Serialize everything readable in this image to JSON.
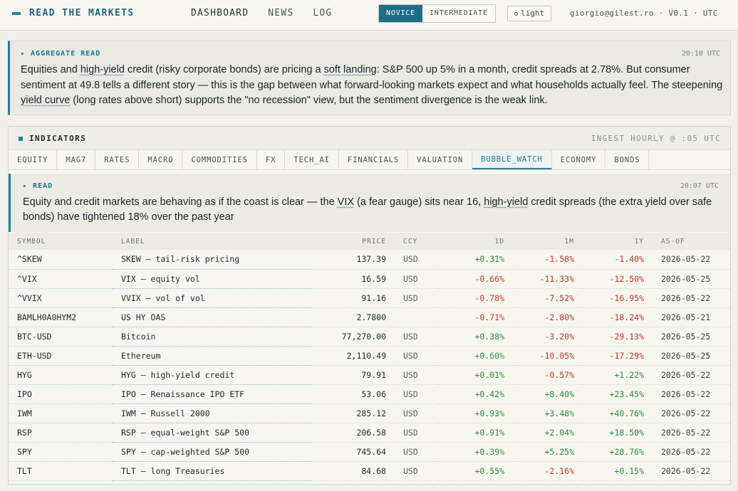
{
  "header": {
    "brand": "READ THE MARKETS",
    "nav": [
      {
        "label": "DASHBOARD",
        "name": "nav-dashboard"
      },
      {
        "label": "NEWS",
        "name": "nav-news"
      },
      {
        "label": "LOG",
        "name": "nav-log"
      }
    ],
    "levels": [
      "NOVICE",
      "INTERMEDIATE"
    ],
    "active_level": "NOVICE",
    "theme_label": "light",
    "user_info": "giorgio@gilest.ro · V0.1 · UTC"
  },
  "aggregate": {
    "heading": "▸ AGGREGATE READ",
    "time": "20:10 UTC",
    "text": [
      {
        "t": "Equities and "
      },
      {
        "t": "high-yield",
        "term": true
      },
      {
        "t": " credit (risky corporate bonds) are pricing a "
      },
      {
        "t": "soft landing",
        "term": true
      },
      {
        "t": ": S&P 500 up 5% in a month, credit spreads at 2.78%. But consumer sentiment at 49.8 tells a different story — this is the gap between what forward-looking markets expect and what households actually feel. The steepening "
      },
      {
        "t": "yield curve",
        "term": true
      },
      {
        "t": " (long rates above short) supports the \"no recession\" view, but the sentiment divergence is the weak link."
      }
    ]
  },
  "indicators": {
    "title": "INDICATORS",
    "ingest": "INGEST HOURLY @ :05 UTC",
    "tabs": [
      "EQUITY",
      "MAG7",
      "RATES",
      "MACRO",
      "COMMODITIES",
      "FX",
      "TECH_AI",
      "FINANCIALS",
      "VALUATION",
      "BUBBLE_WATCH",
      "ECONOMY",
      "BONDS"
    ],
    "active_tab": "BUBBLE_WATCH",
    "read": {
      "heading": "▸ READ",
      "time": "20:07 UTC",
      "text": [
        {
          "t": "Equity and credit markets are behaving as if the coast is clear — the "
        },
        {
          "t": "VIX",
          "term": true
        },
        {
          "t": " (a fear gauge) sits near 16, "
        },
        {
          "t": "high-yield",
          "term": true
        },
        {
          "t": " credit spreads (the extra yield over safe bonds) have tightened 18% over the past year"
        }
      ]
    },
    "columns": [
      "SYMBOL",
      "LABEL",
      "PRICE",
      "CCY",
      "1D",
      "1M",
      "1Y",
      "AS-OF"
    ],
    "rows": [
      {
        "symbol": "^SKEW",
        "label": "SKEW — tail-risk pricing",
        "price": "137.39",
        "ccy": "USD",
        "d1": "+0.31%",
        "m1": "-1.58%",
        "y1": "-1.40%",
        "asof": "2026-05-22"
      },
      {
        "symbol": "^VIX",
        "label": "VIX — equity vol",
        "price": "16.59",
        "ccy": "USD",
        "d1": "-0.66%",
        "m1": "-11.33%",
        "y1": "-12.50%",
        "asof": "2026-05-25"
      },
      {
        "symbol": "^VVIX",
        "label": "VVIX — vol of vol",
        "price": "91.16",
        "ccy": "USD",
        "d1": "-0.78%",
        "m1": "-7.52%",
        "y1": "-16.95%",
        "asof": "2026-05-22"
      },
      {
        "symbol": "BAMLH0A0HYM2",
        "label": "US HY OAS",
        "price": "2.7800",
        "ccy": "",
        "d1": "-0.71%",
        "m1": "-2.80%",
        "y1": "-18.24%",
        "asof": "2026-05-21"
      },
      {
        "symbol": "BTC-USD",
        "label": "Bitcoin",
        "price": "77,270.00",
        "ccy": "USD",
        "d1": "+0.38%",
        "m1": "-3.20%",
        "y1": "-29.13%",
        "asof": "2026-05-25"
      },
      {
        "symbol": "ETH-USD",
        "label": "Ethereum",
        "price": "2,110.49",
        "ccy": "USD",
        "d1": "+0.60%",
        "m1": "-10.05%",
        "y1": "-17.29%",
        "asof": "2026-05-25"
      },
      {
        "symbol": "HYG",
        "label": "HYG — high-yield credit",
        "price": "79.91",
        "ccy": "USD",
        "d1": "+0.01%",
        "m1": "-0.57%",
        "y1": "+1.22%",
        "asof": "2026-05-22"
      },
      {
        "symbol": "IPO",
        "label": "IPO — Renaissance IPO ETF",
        "price": "53.06",
        "ccy": "USD",
        "d1": "+0.42%",
        "m1": "+8.40%",
        "y1": "+23.45%",
        "asof": "2026-05-22"
      },
      {
        "symbol": "IWM",
        "label": "IWM — Russell 2000",
        "price": "285.12",
        "ccy": "USD",
        "d1": "+0.93%",
        "m1": "+3.48%",
        "y1": "+40.76%",
        "asof": "2026-05-22"
      },
      {
        "symbol": "RSP",
        "label": "RSP — equal-weight S&P 500",
        "price": "206.58",
        "ccy": "USD",
        "d1": "+0.91%",
        "m1": "+2.04%",
        "y1": "+18.50%",
        "asof": "2026-05-22"
      },
      {
        "symbol": "SPY",
        "label": "SPY — cap-weighted S&P 500",
        "price": "745.64",
        "ccy": "USD",
        "d1": "+0.39%",
        "m1": "+5.25%",
        "y1": "+28.76%",
        "asof": "2026-05-22"
      },
      {
        "symbol": "TLT",
        "label": "TLT — long Treasuries",
        "price": "84.68",
        "ccy": "USD",
        "d1": "+0.55%",
        "m1": "-2.16%",
        "y1": "+0.15%",
        "asof": "2026-05-22"
      }
    ]
  },
  "colors": {
    "accent": "#2a7f96",
    "positive": "#2e8a3f",
    "negative": "#c0392b"
  }
}
